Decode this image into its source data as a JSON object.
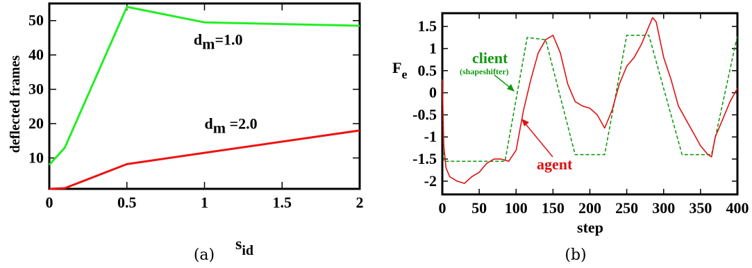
{
  "chart_data": [
    {
      "type": "line",
      "caption": "(a)",
      "xlabel": "s",
      "xlabel_sub": "id",
      "ylabel": "deflected frames",
      "xlim": [
        0,
        2
      ],
      "ylim": [
        1,
        55
      ],
      "xticks": [
        0,
        0.5,
        1,
        1.5,
        2
      ],
      "xtick_labels": [
        "0",
        "0.5",
        "1",
        "1.5",
        "2"
      ],
      "yticks": [
        10,
        20,
        30,
        40,
        50
      ],
      "ytick_labels": [
        "10",
        "20",
        "30",
        "40",
        "50"
      ],
      "series": [
        {
          "color": "#22ee22",
          "x": [
            0,
            0.1,
            0.5,
            1.0,
            2.0
          ],
          "y": [
            8,
            13,
            54,
            49.5,
            48.5
          ]
        },
        {
          "color": "#ee1111",
          "x": [
            0,
            0.1,
            0.5,
            1.0,
            2.0
          ],
          "y": [
            1,
            1.2,
            8.2,
            11.5,
            18
          ]
        }
      ],
      "annotations": [
        {
          "main": "d",
          "sub": "m",
          "rest": "=1.0",
          "x": 0.93,
          "y": 43
        },
        {
          "main": "d",
          "sub": "m",
          "rest": " =2.0",
          "x": 1.0,
          "y": 18.5
        }
      ]
    },
    {
      "type": "line",
      "caption": "(b)",
      "xlabel": "step",
      "ylabel": "F",
      "ylabel_sub": "e",
      "xlim": [
        0,
        400
      ],
      "ylim": [
        -2.3,
        1.8
      ],
      "xticks": [
        0,
        50,
        100,
        150,
        200,
        250,
        300,
        350,
        400
      ],
      "xtick_labels": [
        "0",
        "50",
        "100",
        "150",
        "200",
        "250",
        "300",
        "350",
        "400"
      ],
      "yticks": [
        -2,
        -1.5,
        -1,
        -0.5,
        0,
        0.5,
        1,
        1.5
      ],
      "ytick_labels": [
        "-2",
        "-1.5",
        "-1",
        "-0.5",
        "0",
        "0.5",
        "1",
        "1.5"
      ],
      "series": [
        {
          "name": "client",
          "color": "#119911",
          "dashed": true,
          "x": [
            0,
            2,
            85,
            115,
            140,
            180,
            220,
            250,
            280,
            325,
            365,
            400
          ],
          "y": [
            0.3,
            -1.55,
            -1.55,
            1.25,
            1.2,
            -1.4,
            -1.4,
            1.3,
            1.3,
            -1.4,
            -1.4,
            1.3
          ]
        },
        {
          "name": "agent",
          "color": "#dd1111",
          "dashed": false,
          "x": [
            0,
            2,
            5,
            10,
            20,
            30,
            40,
            50,
            60,
            70,
            80,
            90,
            100,
            110,
            120,
            130,
            140,
            150,
            160,
            170,
            180,
            190,
            200,
            210,
            220,
            230,
            240,
            250,
            260,
            270,
            280,
            285,
            290,
            295,
            300,
            310,
            320,
            330,
            340,
            350,
            360,
            365,
            370,
            380,
            390,
            400
          ],
          "y": [
            0.3,
            -1.2,
            -1.7,
            -1.9,
            -2.0,
            -2.05,
            -1.9,
            -1.8,
            -1.6,
            -1.5,
            -1.5,
            -1.55,
            -1.3,
            -0.4,
            0.3,
            0.9,
            1.2,
            1.3,
            0.9,
            0.2,
            -0.2,
            -0.3,
            -0.35,
            -0.5,
            -0.8,
            -0.4,
            0.2,
            0.6,
            0.8,
            1.1,
            1.5,
            1.7,
            1.6,
            1.2,
            0.8,
            0.3,
            -0.3,
            -0.6,
            -0.9,
            -1.2,
            -1.4,
            -1.45,
            -1.0,
            -0.6,
            -0.2,
            0.1
          ]
        }
      ],
      "annotations": [
        {
          "text": "client",
          "color": "#119911"
        },
        {
          "text": "(shapeshifter)",
          "color": "#119911"
        },
        {
          "text": "agent",
          "color": "#dd1111"
        }
      ]
    }
  ]
}
